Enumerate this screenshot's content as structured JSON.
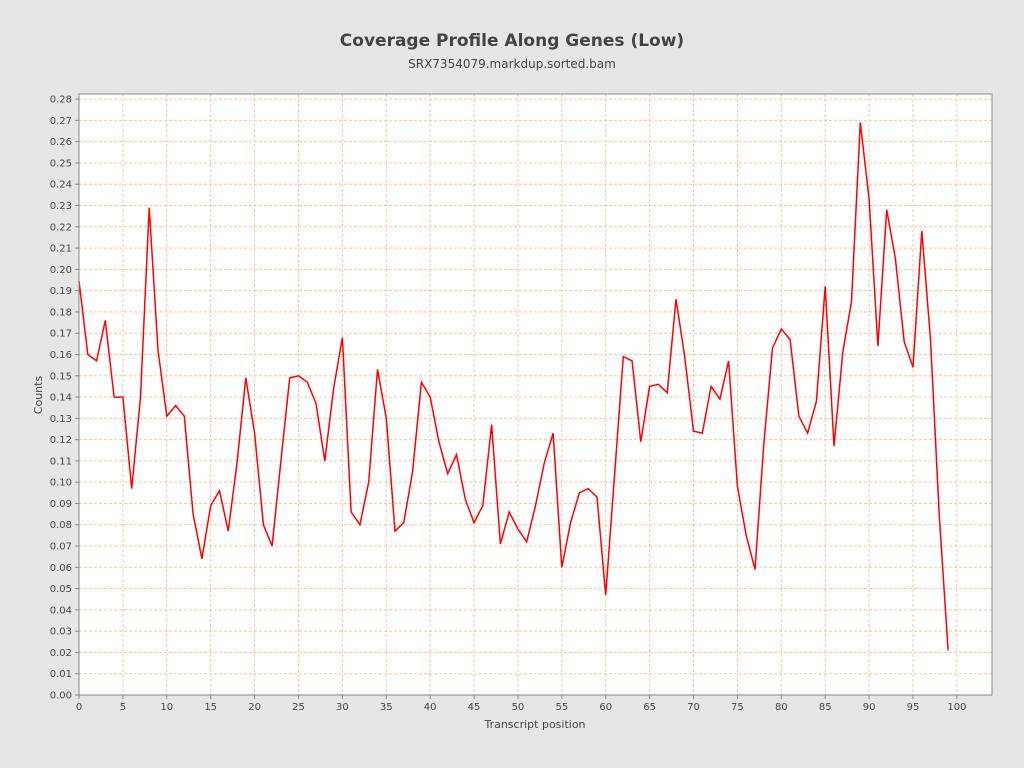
{
  "chart_data": {
    "type": "line",
    "title": "Coverage Profile Along Genes (Low)",
    "subtitle": "SRX7354079.markdup.sorted.bam",
    "xlabel": "Transcript position",
    "ylabel": "Counts",
    "xlim": [
      0,
      104
    ],
    "ylim": [
      0,
      0.2824
    ],
    "xticks": [
      0,
      5,
      10,
      15,
      20,
      25,
      30,
      35,
      40,
      45,
      50,
      55,
      60,
      65,
      70,
      75,
      80,
      85,
      90,
      95,
      100
    ],
    "yticks": [
      "0.00",
      "0.01",
      "0.02",
      "0.03",
      "0.04",
      "0.05",
      "0.06",
      "0.07",
      "0.08",
      "0.09",
      "0.10",
      "0.11",
      "0.12",
      "0.13",
      "0.14",
      "0.15",
      "0.16",
      "0.17",
      "0.18",
      "0.19",
      "0.20",
      "0.21",
      "0.22",
      "0.23",
      "0.24",
      "0.25",
      "0.26",
      "0.27",
      "0.28"
    ],
    "grid": true,
    "series": [
      {
        "name": "Counts",
        "color": "#ff0000",
        "x": [
          0,
          1,
          2,
          3,
          4,
          5,
          6,
          7,
          8,
          9,
          10,
          11,
          12,
          13,
          14,
          15,
          16,
          17,
          18,
          19,
          20,
          21,
          22,
          23,
          24,
          25,
          26,
          27,
          28,
          29,
          30,
          31,
          32,
          33,
          34,
          35,
          36,
          37,
          38,
          39,
          40,
          41,
          42,
          43,
          44,
          45,
          46,
          47,
          48,
          49,
          50,
          51,
          52,
          53,
          54,
          55,
          56,
          57,
          58,
          59,
          60,
          61,
          62,
          63,
          64,
          65,
          66,
          67,
          68,
          69,
          70,
          71,
          72,
          73,
          74,
          75,
          76,
          77,
          78,
          79,
          80,
          81,
          82,
          83,
          84,
          85,
          86,
          87,
          88,
          89,
          90,
          91,
          92,
          93,
          94,
          95,
          96,
          97,
          98,
          99
        ],
        "values": [
          0.1945,
          0.16,
          0.157,
          0.176,
          0.14,
          0.14,
          0.097,
          0.14,
          0.229,
          0.162,
          0.131,
          0.136,
          0.131,
          0.085,
          0.064,
          0.089,
          0.096,
          0.077,
          0.109,
          0.149,
          0.123,
          0.08,
          0.07,
          0.11,
          0.149,
          0.15,
          0.147,
          0.137,
          0.11,
          0.144,
          0.168,
          0.086,
          0.08,
          0.1,
          0.153,
          0.13,
          0.077,
          0.081,
          0.105,
          0.147,
          0.14,
          0.119,
          0.104,
          0.113,
          0.092,
          0.081,
          0.089,
          0.127,
          0.071,
          0.086,
          0.078,
          0.072,
          0.089,
          0.109,
          0.123,
          0.06,
          0.081,
          0.095,
          0.097,
          0.093,
          0.047,
          0.103,
          0.159,
          0.157,
          0.119,
          0.145,
          0.146,
          0.142,
          0.186,
          0.159,
          0.124,
          0.123,
          0.145,
          0.139,
          0.157,
          0.098,
          0.075,
          0.059,
          0.118,
          0.163,
          0.172,
          0.167,
          0.131,
          0.123,
          0.138,
          0.192,
          0.117,
          0.161,
          0.185,
          0.269,
          0.233,
          0.164,
          0.228,
          0.205,
          0.166,
          0.154,
          0.218,
          0.167,
          0.084,
          0.021
        ]
      }
    ]
  }
}
